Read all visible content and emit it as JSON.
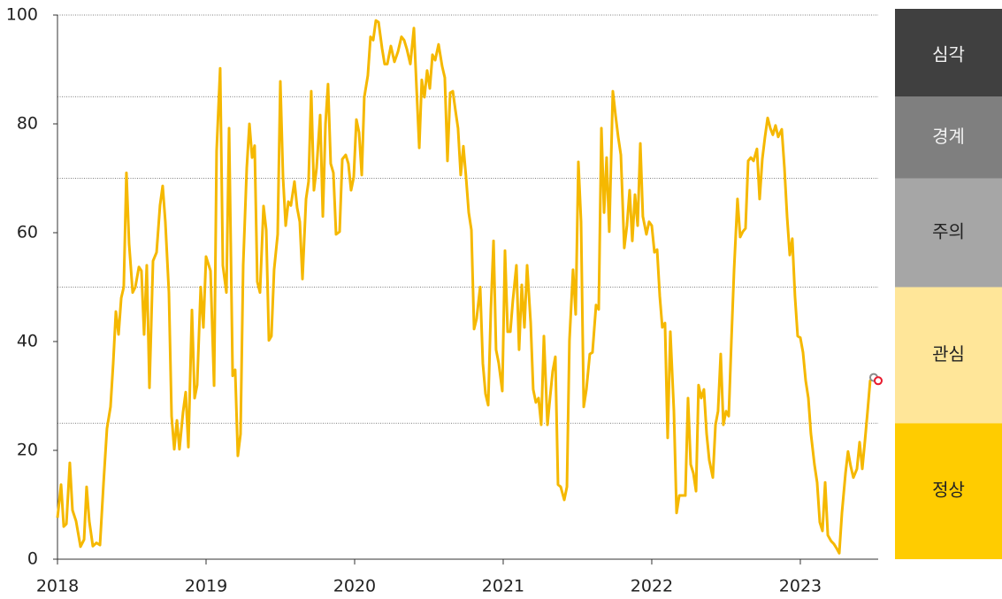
{
  "chart_data": {
    "type": "line",
    "xlim": [
      2018,
      2023.524
    ],
    "xticks": [
      2018,
      2019,
      2020,
      2021,
      2022,
      2023
    ],
    "ylim": [
      0,
      100
    ],
    "yticks": [
      0,
      20,
      40,
      60,
      80,
      100
    ],
    "x": [
      2018.0,
      2018.024,
      2018.042,
      2018.06,
      2018.083,
      2018.101,
      2018.125,
      2018.155,
      2018.179,
      2018.196,
      2018.214,
      2018.238,
      2018.262,
      2018.286,
      2018.31,
      2018.333,
      2018.357,
      2018.375,
      2018.393,
      2018.411,
      2018.429,
      2018.446,
      2018.464,
      2018.482,
      2018.506,
      2018.524,
      2018.548,
      2018.565,
      2018.583,
      2018.601,
      2018.619,
      2018.643,
      2018.667,
      2018.69,
      2018.708,
      2018.726,
      2018.75,
      2018.768,
      2018.786,
      2018.804,
      2018.821,
      2018.845,
      2018.863,
      2018.881,
      2018.905,
      2018.923,
      2018.94,
      2018.964,
      2018.982,
      2019.0,
      2019.03,
      2019.054,
      2019.071,
      2019.095,
      2019.113,
      2019.137,
      2019.155,
      2019.179,
      2019.196,
      2019.214,
      2019.232,
      2019.25,
      2019.274,
      2019.292,
      2019.31,
      2019.327,
      2019.345,
      2019.363,
      2019.387,
      2019.405,
      2019.423,
      2019.44,
      2019.458,
      2019.482,
      2019.5,
      2019.518,
      2019.536,
      2019.554,
      2019.571,
      2019.595,
      2019.613,
      2019.631,
      2019.649,
      2019.673,
      2019.69,
      2019.708,
      2019.726,
      2019.744,
      2019.768,
      2019.786,
      2019.804,
      2019.821,
      2019.839,
      2019.857,
      2019.875,
      2019.899,
      2019.917,
      2019.94,
      2019.958,
      2019.976,
      2019.994,
      2020.012,
      2020.03,
      2020.048,
      2020.065,
      2020.089,
      2020.107,
      2020.125,
      2020.143,
      2020.161,
      2020.185,
      2020.202,
      2020.22,
      2020.244,
      2020.268,
      2020.292,
      2020.315,
      2020.333,
      2020.351,
      2020.375,
      2020.399,
      2020.417,
      2020.435,
      2020.452,
      2020.47,
      2020.488,
      2020.506,
      2020.524,
      2020.542,
      2020.565,
      2020.589,
      2020.607,
      2020.625,
      2020.643,
      2020.661,
      2020.679,
      2020.696,
      2020.714,
      2020.732,
      2020.75,
      2020.768,
      2020.786,
      2020.804,
      2020.821,
      2020.845,
      2020.863,
      2020.881,
      2020.899,
      2020.917,
      2020.935,
      2020.952,
      2020.97,
      2020.994,
      2021.012,
      2021.03,
      2021.048,
      2021.065,
      2021.089,
      2021.107,
      2021.125,
      2021.143,
      2021.161,
      2021.185,
      2021.202,
      2021.22,
      2021.238,
      2021.256,
      2021.274,
      2021.298,
      2021.315,
      2021.333,
      2021.351,
      2021.369,
      2021.387,
      2021.411,
      2021.429,
      2021.446,
      2021.47,
      2021.488,
      2021.506,
      2021.524,
      2021.542,
      2021.56,
      2021.583,
      2021.601,
      2021.625,
      2021.643,
      2021.661,
      2021.679,
      2021.696,
      2021.714,
      2021.738,
      2021.756,
      2021.774,
      2021.792,
      2021.815,
      2021.833,
      2021.851,
      2021.869,
      2021.887,
      2021.905,
      2021.923,
      2021.94,
      2021.964,
      2021.982,
      2022.0,
      2022.018,
      2022.036,
      2022.054,
      2022.071,
      2022.089,
      2022.107,
      2022.125,
      2022.149,
      2022.167,
      2022.185,
      2022.208,
      2022.226,
      2022.244,
      2022.262,
      2022.28,
      2022.298,
      2022.315,
      2022.333,
      2022.351,
      2022.369,
      2022.387,
      2022.411,
      2022.429,
      2022.446,
      2022.464,
      2022.482,
      2022.5,
      2022.518,
      2022.536,
      2022.554,
      2022.577,
      2022.595,
      2022.613,
      2022.631,
      2022.649,
      2022.667,
      2022.685,
      2022.708,
      2022.726,
      2022.744,
      2022.762,
      2022.78,
      2022.798,
      2022.815,
      2022.833,
      2022.851,
      2022.875,
      2022.893,
      2022.911,
      2022.929,
      2022.946,
      2022.964,
      2022.982,
      2023.0,
      2023.018,
      2023.036,
      2023.054,
      2023.071,
      2023.095,
      2023.113,
      2023.131,
      2023.149,
      2023.167,
      2023.185,
      2023.208,
      2023.226,
      2023.244,
      2023.262,
      2023.28,
      2023.304,
      2023.321,
      2023.339,
      2023.357,
      2023.381,
      2023.399,
      2023.417,
      2023.435,
      2023.452,
      2023.47,
      2023.494
    ],
    "values": [
      7.6,
      13.7,
      6,
      6.5,
      17.7,
      9,
      7,
      2.3,
      3.6,
      13.3,
      7,
      2.4,
      3,
      2.6,
      14,
      24,
      28,
      36,
      45.5,
      41.3,
      48,
      50,
      71,
      58,
      49,
      50,
      53.7,
      53,
      41.3,
      54,
      31.5,
      54.8,
      56.4,
      65,
      68.6,
      62,
      49,
      26.3,
      20.2,
      25.5,
      20.2,
      27,
      30.7,
      20.6,
      45.8,
      29.6,
      32,
      50,
      42.6,
      55.6,
      53,
      31.9,
      75,
      90.2,
      54,
      49,
      79.2,
      33.7,
      34.8,
      19,
      23,
      54,
      71.9,
      80,
      73.8,
      76,
      51,
      49,
      64.9,
      60.5,
      40.2,
      41,
      53.2,
      59.7,
      87.8,
      70.2,
      61.3,
      65.7,
      65,
      69.4,
      64.6,
      62,
      51.5,
      66.2,
      69.4,
      86,
      67.8,
      71.9,
      81.6,
      63,
      80,
      87.3,
      72.7,
      71,
      59.7,
      60.2,
      73.5,
      74.3,
      72.7,
      67.8,
      70.2,
      80.8,
      78.4,
      70.6,
      84.9,
      88.9,
      96,
      95.4,
      99,
      98.7,
      93.8,
      91,
      91,
      94.3,
      91.4,
      93.3,
      96,
      95.4,
      93.8,
      91,
      97.6,
      86.5,
      75.6,
      88.1,
      84.9,
      89.8,
      86.5,
      92.7,
      91.7,
      94.6,
      90.6,
      88.5,
      73.2,
      85.7,
      86,
      82.4,
      79.2,
      70.6,
      75.9,
      70.2,
      63.7,
      60.5,
      42.3,
      44.2,
      50,
      36,
      30.4,
      28.3,
      45.9,
      58.5,
      38.5,
      36,
      30.9,
      56.7,
      41.8,
      41.8,
      47.5,
      54,
      38.5,
      50.4,
      42.6,
      54,
      43.4,
      31.2,
      28.8,
      29.6,
      24.7,
      41,
      24.7,
      29.6,
      34.5,
      37.2,
      13.7,
      13.3,
      10.9,
      13.3,
      40.2,
      53.2,
      45,
      73,
      62,
      28,
      31.2,
      37.7,
      38,
      46.7,
      45.9,
      79.2,
      63.7,
      73.8,
      60.2,
      86,
      81.6,
      77.6,
      74.3,
      57.2,
      61.3,
      67.8,
      58.5,
      67,
      61.3,
      76.4,
      63,
      59.7,
      62,
      61.3,
      56.4,
      56.9,
      48.3,
      42.6,
      43.4,
      22.3,
      41.8,
      27.2,
      8.5,
      11.7,
      11.7,
      11.7,
      29.6,
      17.4,
      15.8,
      12.5,
      32,
      29.6,
      31.2,
      23.1,
      18.2,
      15,
      24.7,
      27.2,
      37.7,
      24.7,
      27.2,
      26.3,
      40.2,
      53.2,
      66.2,
      59.2,
      60.2,
      60.8,
      73.2,
      73.8,
      73.2,
      75.4,
      66.2,
      73.5,
      77.6,
      81.1,
      79.2,
      78,
      79.7,
      77.6,
      79,
      71.9,
      62.9,
      55.9,
      58.9,
      48.3,
      41,
      40.7,
      38,
      32.8,
      29.6,
      23.1,
      17.4,
      14.1,
      6.8,
      5.2,
      14.1,
      4.4,
      3.3,
      2.8,
      2,
      1.1,
      8.5,
      15.8,
      19.8,
      17.1,
      15,
      16.6,
      21.5,
      16.6,
      21.8,
      27,
      32.8,
      33.2
    ],
    "color": "#F5B800",
    "markers": [
      {
        "x": 2023.494,
        "y": 33.4,
        "color": "#8C8C8C"
      },
      {
        "x": 2023.524,
        "y": 32.8,
        "color": "#E8192C"
      }
    ],
    "bands": [
      {
        "label": "정상",
        "from": 0,
        "to": 25,
        "color": "#FFCC00",
        "text_color": "#222222"
      },
      {
        "label": "관심",
        "from": 25,
        "to": 50,
        "color": "#FFE699",
        "text_color": "#222222"
      },
      {
        "label": "주의",
        "from": 50,
        "to": 70,
        "color": "#A6A6A6",
        "text_color": "#222222"
      },
      {
        "label": "경계",
        "from": 70,
        "to": 85,
        "color": "#7F7F7F",
        "text_color": "#F2F2F2"
      },
      {
        "label": "심각",
        "from": 85,
        "to": 100,
        "color": "#404040",
        "text_color": "#F2F2F2"
      }
    ]
  }
}
